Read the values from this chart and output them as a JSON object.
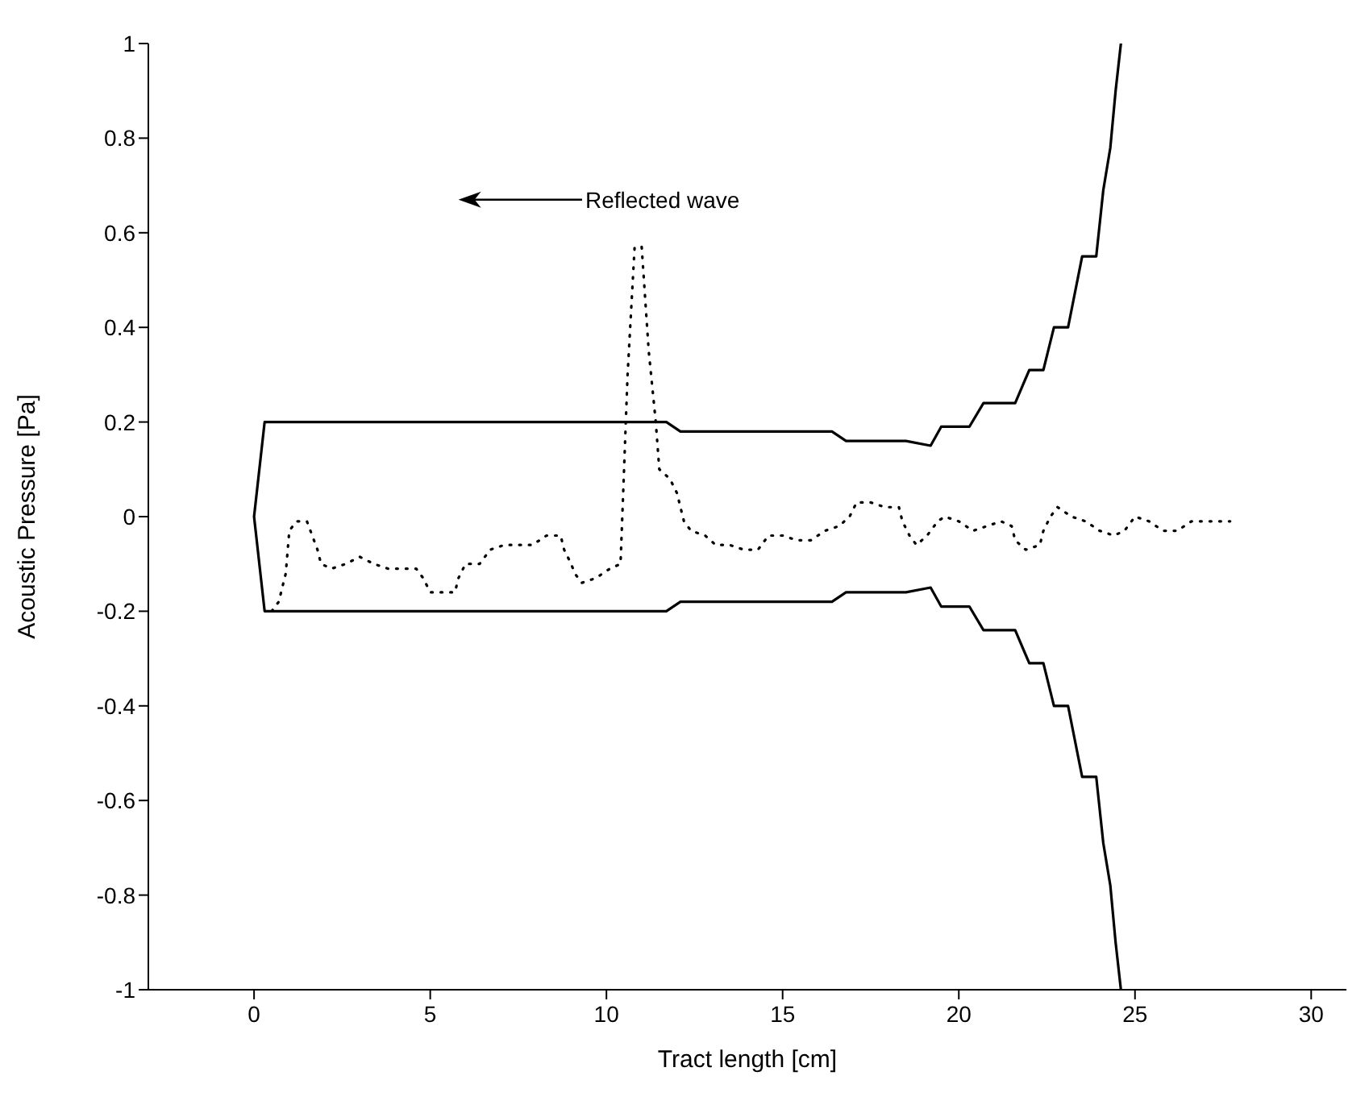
{
  "chart_data": {
    "type": "line",
    "xlabel": "Tract length [cm]",
    "ylabel": "Acoustic Pressure [Pa]",
    "annotations": [
      "Reflected wave"
    ],
    "xlim": [
      -3,
      31
    ],
    "xticks": [
      0,
      5,
      10,
      15,
      20,
      25,
      30
    ],
    "ylim": [
      -1,
      1
    ],
    "yticks": [
      -1,
      -0.8,
      -0.6,
      -0.4,
      -0.2,
      0,
      0.2,
      0.4,
      0.6,
      0.8,
      1
    ],
    "series": [
      {
        "color": "#000000",
        "line_style": "solid",
        "x": [
          24.6,
          24.45,
          24.3,
          24.1,
          23.9,
          23.5,
          23.1,
          22.7,
          22.4,
          22.0,
          21.6,
          20.7,
          20.3,
          19.5,
          19.2,
          18.5,
          16.8,
          16.4,
          12.1,
          11.7,
          0.3,
          0,
          0.3,
          11.7,
          12.1,
          16.4,
          16.8,
          18.5,
          19.2,
          19.5,
          20.3,
          20.7,
          21.6,
          22.0,
          22.4,
          22.7,
          23.1,
          23.5,
          23.9,
          24.1,
          24.3,
          24.45,
          24.6
        ],
        "values": [
          1,
          0.9,
          0.78,
          0.69,
          0.55,
          0.55,
          0.4,
          0.4,
          0.31,
          0.31,
          0.24,
          0.24,
          0.19,
          0.19,
          0.15,
          0.16,
          0.16,
          0.18,
          0.18,
          0.2,
          0.2,
          0,
          -0.2,
          -0.2,
          -0.18,
          -0.18,
          -0.16,
          -0.16,
          -0.15,
          -0.19,
          -0.19,
          -0.24,
          -0.24,
          -0.31,
          -0.31,
          -0.4,
          -0.4,
          -0.55,
          -0.55,
          -0.69,
          -0.78,
          -0.9,
          -1
        ]
      },
      {
        "color": "#000000",
        "line_style": "dotted",
        "x": [
          0.5,
          0.7,
          0.8,
          0.9,
          1.0,
          1.2,
          1.5,
          1.65,
          1.8,
          1.9,
          2.2,
          2.6,
          3.0,
          3.4,
          3.8,
          4.2,
          4.6,
          4.8,
          5.0,
          5.7,
          5.8,
          6.0,
          6.4,
          6.7,
          7.1,
          7.5,
          7.9,
          8.3,
          8.7,
          8.8,
          9.0,
          9.1,
          9.3,
          9.7,
          10.1,
          10.4,
          10.6,
          10.8,
          11.0,
          11.2,
          11.4,
          11.5,
          11.8,
          12.0,
          12.1,
          12.2,
          12.4,
          12.8,
          13.1,
          13.5,
          13.9,
          14.3,
          14.6,
          15.0,
          15.4,
          15.8,
          16.2,
          16.6,
          16.9,
          17.1,
          17.5,
          17.9,
          18.3,
          18.4,
          18.6,
          18.8,
          19.1,
          19.4,
          19.6,
          20.0,
          20.4,
          20.8,
          21.2,
          21.5,
          21.6,
          21.9,
          22.3,
          22.4,
          22.6,
          22.8,
          23.2,
          23.6,
          24.0,
          24.4,
          24.7,
          25.0,
          25.4,
          25.8,
          26.2,
          26.6,
          26.9,
          27.3,
          27.7
        ],
        "values": [
          -0.2,
          -0.18,
          -0.15,
          -0.12,
          -0.03,
          -0.01,
          -0.01,
          -0.04,
          -0.07,
          -0.1,
          -0.11,
          -0.1,
          -0.085,
          -0.1,
          -0.11,
          -0.11,
          -0.11,
          -0.13,
          -0.16,
          -0.16,
          -0.13,
          -0.1,
          -0.1,
          -0.07,
          -0.06,
          -0.06,
          -0.06,
          -0.04,
          -0.04,
          -0.07,
          -0.1,
          -0.12,
          -0.14,
          -0.13,
          -0.11,
          -0.1,
          0.3,
          0.57,
          0.57,
          0.35,
          0.2,
          0.1,
          0.08,
          0.05,
          0.02,
          -0.01,
          -0.03,
          -0.04,
          -0.06,
          -0.06,
          -0.07,
          -0.07,
          -0.04,
          -0.04,
          -0.05,
          -0.05,
          -0.03,
          -0.02,
          0,
          0.03,
          0.03,
          0.02,
          0.02,
          -0.01,
          -0.04,
          -0.06,
          -0.04,
          -0.01,
          0,
          -0.01,
          -0.03,
          -0.02,
          -0.01,
          -0.02,
          -0.05,
          -0.07,
          -0.06,
          -0.03,
          0,
          0.02,
          0,
          -0.01,
          -0.03,
          -0.04,
          -0.03,
          0,
          -0.01,
          -0.03,
          -0.03,
          -0.01,
          -0.01,
          -0.01,
          -0.01
        ]
      }
    ]
  }
}
